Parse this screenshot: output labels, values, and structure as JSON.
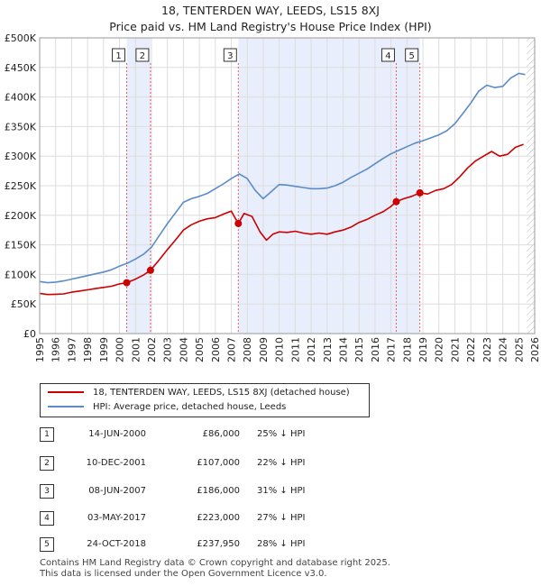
{
  "chart_data": {
    "type": "line",
    "title": "18, TENTERDEN WAY, LEEDS, LS15 8XJ",
    "subtitle": "Price paid vs. HM Land Registry's House Price Index (HPI)",
    "xlabel": "",
    "ylabel": "",
    "xlim": [
      1995,
      2026
    ],
    "ylim": [
      0,
      500000
    ],
    "x_ticks": [
      1995,
      1996,
      1997,
      1998,
      1999,
      2000,
      2001,
      2002,
      2003,
      2004,
      2005,
      2006,
      2007,
      2008,
      2009,
      2010,
      2011,
      2012,
      2013,
      2014,
      2015,
      2016,
      2017,
      2018,
      2019,
      2020,
      2021,
      2022,
      2023,
      2024,
      2025,
      2026
    ],
    "y_ticks": [
      0,
      50000,
      100000,
      150000,
      200000,
      250000,
      300000,
      350000,
      400000,
      450000,
      500000
    ],
    "y_tick_labels": [
      "£0",
      "£50K",
      "£100K",
      "£150K",
      "£200K",
      "£250K",
      "£300K",
      "£350K",
      "£400K",
      "£450K",
      "£500K"
    ],
    "grid": true,
    "shaded_ranges": [
      [
        2000.45,
        2001.94
      ],
      [
        2007.44,
        2018.81
      ]
    ],
    "future_hatch_from": 2025.5,
    "series": [
      {
        "name": "18, TENTERDEN WAY, LEEDS, LS15 8XJ (detached house)",
        "color": "#cc0000",
        "x": [
          1995,
          1995.5,
          1996,
          1996.5,
          1997,
          1997.5,
          1998,
          1998.5,
          1999,
          1999.5,
          2000,
          2000.45,
          2001,
          2001.5,
          2001.94,
          2002.5,
          2003,
          2003.5,
          2004,
          2004.5,
          2005,
          2005.5,
          2006,
          2006.5,
          2007,
          2007.44,
          2007.8,
          2008.3,
          2008.8,
          2009.2,
          2009.6,
          2010,
          2010.5,
          2011,
          2011.5,
          2012,
          2012.5,
          2013,
          2013.5,
          2014,
          2014.5,
          2015,
          2015.5,
          2016,
          2016.5,
          2017,
          2017.33,
          2017.8,
          2018.3,
          2018.81,
          2019.3,
          2019.8,
          2020.3,
          2020.8,
          2021.3,
          2021.8,
          2022.3,
          2022.8,
          2023.3,
          2023.8,
          2024.3,
          2024.8,
          2025.3
        ],
        "values": [
          68000,
          66000,
          66500,
          67000,
          70000,
          72000,
          74000,
          76000,
          78000,
          80000,
          84000,
          86000,
          92000,
          99000,
          107000,
          125000,
          142000,
          158000,
          175000,
          184000,
          190000,
          194000,
          196000,
          202000,
          207000,
          186000,
          203000,
          198000,
          172000,
          158000,
          168000,
          172000,
          171000,
          173000,
          170000,
          168000,
          170000,
          168000,
          172000,
          175000,
          180000,
          188000,
          193000,
          200000,
          206000,
          215000,
          223000,
          228000,
          232000,
          237950,
          236000,
          242000,
          245000,
          252000,
          265000,
          280000,
          292000,
          300000,
          308000,
          300000,
          303000,
          315000,
          320000
        ]
      },
      {
        "name": "HPI: Average price, detached house, Leeds",
        "color": "#5b8cc7",
        "x": [
          1995,
          1995.5,
          1996,
          1996.5,
          1997,
          1997.5,
          1998,
          1998.5,
          1999,
          1999.5,
          2000,
          2000.5,
          2001,
          2001.5,
          2002,
          2002.5,
          2003,
          2003.5,
          2004,
          2004.5,
          2005,
          2005.5,
          2006,
          2006.5,
          2007,
          2007.5,
          2008,
          2008.5,
          2009,
          2009.5,
          2010,
          2010.5,
          2011,
          2011.5,
          2012,
          2012.5,
          2013,
          2013.5,
          2014,
          2014.5,
          2015,
          2015.5,
          2016,
          2016.5,
          2017,
          2017.5,
          2018,
          2018.5,
          2019,
          2019.5,
          2020,
          2020.5,
          2021,
          2021.5,
          2022,
          2022.5,
          2023,
          2023.5,
          2024,
          2024.5,
          2025,
          2025.4
        ],
        "values": [
          88000,
          86000,
          87000,
          89000,
          92000,
          95000,
          98000,
          101000,
          104000,
          108000,
          114000,
          119000,
          126000,
          134000,
          146000,
          166000,
          186000,
          204000,
          222000,
          228000,
          232000,
          237000,
          245000,
          253000,
          262000,
          270000,
          262000,
          242000,
          228000,
          240000,
          252000,
          251000,
          249000,
          247000,
          245000,
          245000,
          246000,
          250000,
          256000,
          264000,
          271000,
          278000,
          287000,
          296000,
          304000,
          310000,
          316000,
          322000,
          326000,
          331000,
          336000,
          343000,
          355000,
          372000,
          390000,
          410000,
          420000,
          416000,
          418000,
          432000,
          440000,
          438000
        ]
      }
    ],
    "sales": [
      {
        "num": "1",
        "date": "14-JUN-2000",
        "price": "£86,000",
        "hpi": "25% ↓ HPI",
        "x": 2000.45,
        "y": 86000
      },
      {
        "num": "2",
        "date": "10-DEC-2001",
        "price": "£107,000",
        "hpi": "22% ↓ HPI",
        "x": 2001.94,
        "y": 107000
      },
      {
        "num": "3",
        "date": "08-JUN-2007",
        "price": "£186,000",
        "hpi": "31% ↓ HPI",
        "x": 2007.44,
        "y": 186000
      },
      {
        "num": "4",
        "date": "03-MAY-2017",
        "price": "£223,000",
        "hpi": "27% ↓ HPI",
        "x": 2017.33,
        "y": 223000
      },
      {
        "num": "5",
        "date": "24-OCT-2018",
        "price": "£237,950",
        "hpi": "28% ↓ HPI",
        "x": 2018.81,
        "y": 237950
      }
    ],
    "legend_position": "below-plot"
  },
  "footer": {
    "line1": "Contains HM Land Registry data © Crown copyright and database right 2025.",
    "line2": "This data is licensed under the Open Government Licence v3.0."
  }
}
